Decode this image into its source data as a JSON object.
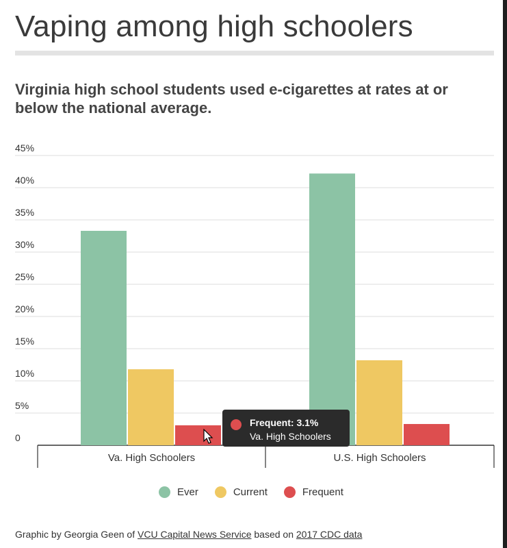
{
  "header": {
    "title": "Vaping among high schoolers",
    "subtitle": "Virginia high school students used e-cigarettes at rates at or below the national average."
  },
  "chart_data": {
    "type": "bar",
    "categories": [
      "Va. High Schoolers",
      "U.S. High Schoolers"
    ],
    "series": [
      {
        "name": "Ever",
        "values": [
          33.3,
          42.2
        ],
        "color": "#8cc3a5"
      },
      {
        "name": "Current",
        "values": [
          11.8,
          13.2
        ],
        "color": "#efc862"
      },
      {
        "name": "Frequent",
        "values": [
          3.1,
          3.3
        ],
        "color": "#dd4e4f"
      }
    ],
    "ylim": [
      0,
      45
    ],
    "yticks": [
      "0",
      "5%",
      "10%",
      "15%",
      "20%",
      "25%",
      "30%",
      "35%",
      "40%",
      "45%"
    ],
    "grid": true,
    "legend_position": "bottom"
  },
  "tooltip": {
    "line1": "Frequent: 3.1%",
    "line2": "Va. High Schoolers",
    "color": "#dd4e4f"
  },
  "credit": {
    "prefix": "Graphic by Georgia Geen of ",
    "org_link": "VCU Capital News Service",
    "middle": " based on ",
    "data_link": "2017 CDC data"
  }
}
